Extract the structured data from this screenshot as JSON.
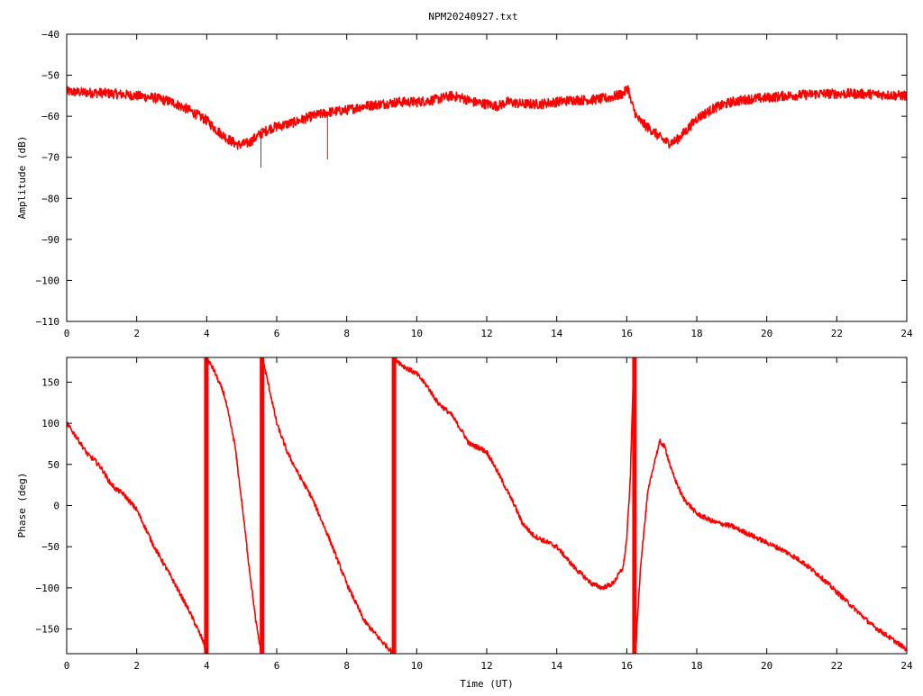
{
  "chart_data": [
    {
      "type": "line",
      "title": "NPM20240927.txt",
      "xlabel": "",
      "ylabel": "Amplitude (dB)",
      "xlim": [
        0,
        24
      ],
      "ylim": [
        -110,
        -40
      ],
      "x_ticks": [
        0,
        2,
        4,
        6,
        8,
        10,
        12,
        14,
        16,
        18,
        20,
        22,
        24
      ],
      "y_ticks": [
        -110,
        -100,
        -90,
        -80,
        -70,
        -60,
        -50,
        -40
      ],
      "x_tick_labels": [
        "0",
        "2",
        "4",
        "6",
        "8",
        "10",
        "12",
        "14",
        "16",
        "18",
        "20",
        "22",
        "24"
      ],
      "y_tick_labels": [
        "−110",
        "−100",
        "−90",
        "−80",
        "−70",
        "−60",
        "−50",
        "−40"
      ],
      "grid": false,
      "series": [
        {
          "color": "#ff0000",
          "noise": 1.2,
          "x": [
            0,
            0.5,
            1,
            1.5,
            2,
            2.5,
            3,
            3.5,
            4,
            4.3,
            4.6,
            4.9,
            5.2,
            5.5,
            5.8,
            6,
            6.5,
            7,
            7.5,
            8,
            8.5,
            9,
            9.5,
            10,
            10.5,
            11,
            11.3,
            11.6,
            12,
            12.3,
            12.6,
            13,
            13.5,
            14,
            14.5,
            15,
            15.5,
            15.9,
            16.05,
            16.1,
            16.3,
            16.5,
            16.8,
            17,
            17.2,
            17.4,
            17.7,
            18,
            18.5,
            19,
            19.5,
            20,
            20.5,
            21,
            21.5,
            22,
            22.5,
            23,
            23.5,
            24
          ],
          "y": [
            -54,
            -54.2,
            -54.3,
            -54.6,
            -55,
            -55.5,
            -56.5,
            -58.5,
            -61,
            -63.5,
            -65.5,
            -67,
            -66.5,
            -64.5,
            -63,
            -62.5,
            -61.5,
            -60,
            -59,
            -58.5,
            -57.5,
            -57,
            -56.5,
            -56.5,
            -56,
            -55,
            -55.5,
            -56.5,
            -57,
            -57.5,
            -56.5,
            -57,
            -57,
            -56.5,
            -56,
            -56,
            -55.5,
            -54.5,
            -53,
            -56,
            -60.5,
            -62,
            -64,
            -65.5,
            -66.5,
            -66,
            -63.5,
            -60.5,
            -58,
            -56.5,
            -55.8,
            -55.5,
            -55,
            -54.8,
            -54.5,
            -54.5,
            -54.5,
            -54.6,
            -54.8,
            -55
          ]
        }
      ],
      "spikes": [
        {
          "x": 5.55,
          "from": -63,
          "to": -72.5
        },
        {
          "x": 7.45,
          "from": -59,
          "to": -70.5
        }
      ]
    },
    {
      "type": "line",
      "title": "",
      "xlabel": "Time (UT)",
      "ylabel": "Phase (deg)",
      "xlim": [
        0,
        24
      ],
      "ylim": [
        -180,
        180
      ],
      "x_ticks": [
        0,
        2,
        4,
        6,
        8,
        10,
        12,
        14,
        16,
        18,
        20,
        22,
        24
      ],
      "y_ticks": [
        -150,
        -100,
        -50,
        0,
        50,
        100,
        150
      ],
      "x_tick_labels": [
        "0",
        "2",
        "4",
        "6",
        "8",
        "10",
        "12",
        "14",
        "16",
        "18",
        "20",
        "22",
        "24"
      ],
      "y_tick_labels": [
        "−150",
        "−100",
        "−50",
        "0",
        "50",
        "100",
        "150"
      ],
      "grid": false,
      "series": [
        {
          "color": "#ff0000",
          "noise": 3,
          "segments": [
            {
              "x": [
                0,
                0.3,
                0.6,
                0.8,
                1,
                1.2,
                1.4,
                1.6,
                2,
                2.5,
                3,
                3.5,
                3.9,
                3.98
              ],
              "y": [
                100,
                82,
                62,
                55,
                45,
                30,
                20,
                15,
                -5,
                -50,
                -88,
                -128,
                -165,
                -178
              ]
            },
            {
              "x": [
                4.02,
                4.2,
                4.5,
                4.8,
                5,
                5.2,
                5.4,
                5.55
              ],
              "y": [
                178,
                165,
                135,
                75,
                5,
                -70,
                -140,
                -178
              ]
            },
            {
              "x": [
                5.6,
                5.8,
                6,
                6.3,
                6.6,
                7,
                7.5,
                8,
                8.5,
                9,
                9.3
              ],
              "y": [
                178,
                140,
                100,
                65,
                40,
                10,
                -40,
                -95,
                -140,
                -165,
                -178
              ]
            },
            {
              "x": [
                9.4,
                9.6,
                10,
                10.3,
                10.6,
                11,
                11.3,
                11.5,
                11.8,
                12,
                12.2,
                12.5,
                12.8,
                13,
                13.3,
                13.5,
                14,
                14.5,
                15,
                15.3,
                15.6,
                15.9,
                16,
                16.1,
                16.2
              ],
              "y": [
                178,
                170,
                160,
                145,
                125,
                110,
                90,
                75,
                70,
                65,
                50,
                25,
                0,
                -20,
                -35,
                -40,
                -50,
                -75,
                -95,
                -100,
                -95,
                -75,
                -40,
                30,
                178
              ]
            },
            {
              "x": [
                16.25,
                16.4,
                16.6,
                16.8,
                16.95,
                17.1,
                17.3,
                17.6,
                18,
                18.5,
                19,
                19.5,
                20,
                20.5,
                21,
                21.5,
                22,
                22.5,
                23,
                23.5,
                24
              ],
              "y": [
                -178,
                -70,
                15,
                55,
                78,
                70,
                40,
                10,
                -10,
                -20,
                -25,
                -35,
                -45,
                -55,
                -68,
                -85,
                -105,
                -125,
                -145,
                -160,
                -175
              ]
            }
          ],
          "wraps": [
            3.99,
            5.58,
            9.35,
            16.22
          ]
        }
      ]
    }
  ]
}
